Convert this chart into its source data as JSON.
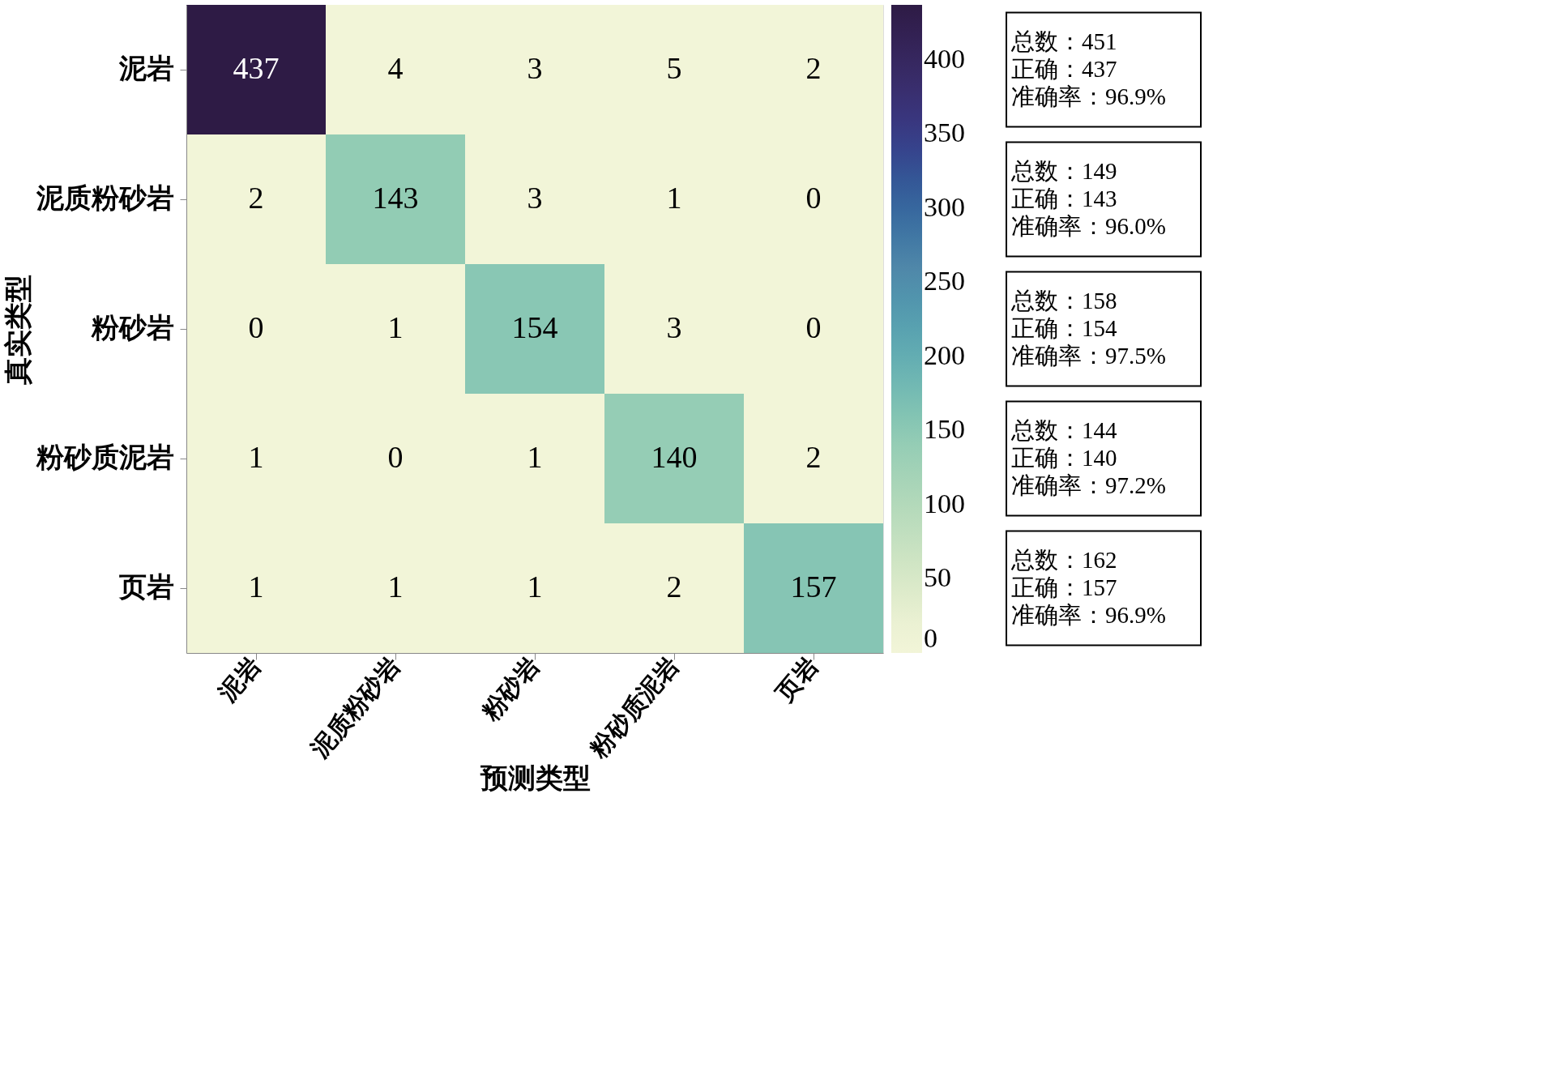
{
  "chart_data": {
    "type": "heatmap",
    "xlabel": "预测类型",
    "ylabel": "真实类型",
    "categories": [
      "泥岩",
      "泥质粉砂岩",
      "粉砂岩",
      "粉砂质泥岩",
      "页岩"
    ],
    "y_categories": [
      "泥岩",
      "泥质粉砂岩",
      "粉砂岩",
      "粉砂质泥岩",
      "页岩"
    ],
    "cells": [
      [
        437,
        4,
        3,
        5,
        2
      ],
      [
        2,
        143,
        3,
        1,
        0
      ],
      [
        0,
        1,
        154,
        3,
        0
      ],
      [
        1,
        0,
        1,
        140,
        2
      ],
      [
        1,
        1,
        1,
        2,
        157
      ]
    ],
    "data_labels": true,
    "clim": [
      0,
      437
    ],
    "cticks": [
      0,
      50,
      100,
      150,
      200,
      250,
      300,
      350,
      400
    ],
    "annotations": [
      "总数：451\n正确：437\n准确率：96.9%",
      "总数：149\n正确：143\n准确率：96.0%",
      "总数：158\n正确：154\n准确率：97.5%",
      "总数：144\n正确：140\n准确率：97.2%",
      "总数：162\n正确：157\n准确率：96.9%"
    ]
  }
}
